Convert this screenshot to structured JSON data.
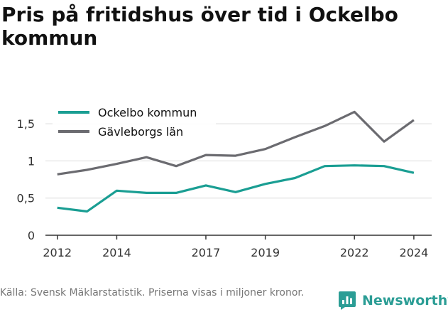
{
  "chart_data": {
    "type": "line",
    "title": "Pris på fritidshus över tid i Ockelbo kommun",
    "xlabel": "",
    "ylabel": "",
    "x": [
      2012,
      2013,
      2014,
      2015,
      2016,
      2017,
      2018,
      2019,
      2020,
      2021,
      2022,
      2023,
      2024
    ],
    "x_ticks": [
      2012,
      2014,
      2017,
      2019,
      2022,
      2024
    ],
    "y_ticks": [
      0,
      0.5,
      1,
      1.5
    ],
    "y_tick_labels": [
      "0",
      "0,5",
      "1",
      "1,5"
    ],
    "ylim": [
      0,
      1.75
    ],
    "xlim": [
      2011.6,
      2024.6
    ],
    "grid": "horizontal",
    "legend_position": "top-left",
    "series": [
      {
        "name": "Ockelbo kommun",
        "color": "#1a9e93",
        "values": [
          0.37,
          0.32,
          0.6,
          0.57,
          0.57,
          0.67,
          0.58,
          0.69,
          0.77,
          0.93,
          0.94,
          0.93,
          0.84
        ]
      },
      {
        "name": "Gävleborgs län",
        "color": "#6b6b70",
        "values": [
          0.82,
          0.88,
          0.96,
          1.05,
          0.93,
          1.08,
          1.07,
          1.16,
          1.32,
          1.47,
          1.66,
          1.26,
          1.55
        ]
      }
    ]
  },
  "footer": {
    "source": "Källa: Svensk Mäklarstatistik. Priserna visas i miljoner kronor."
  },
  "brand": {
    "name": "Newsworthy",
    "icon": "newsworthy-logo-icon",
    "color": "#2b9d95"
  }
}
